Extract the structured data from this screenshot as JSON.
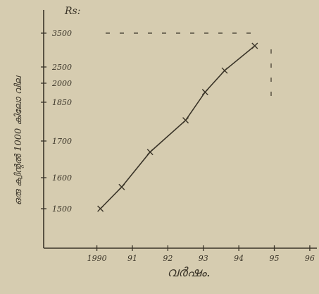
{
  "chart_data": {
    "type": "line",
    "y_unit": "Rs:",
    "y_label": "ഒരു ക്വിന്റൽ 1000 കിലോ വില",
    "x_label": "വർഷം.",
    "x": [
      1990.1,
      1990.7,
      1991.5,
      1992.5,
      1993.05,
      1993.6,
      1994.45
    ],
    "series": [
      {
        "color": "#3a3428",
        "values": [
          1500,
          1570,
          1670,
          1780,
          1930,
          2390,
          3125
        ]
      }
    ],
    "xlim": [
      1988.5,
      1996.2
    ],
    "xticks": [
      {
        "value": 1990,
        "label": "1990"
      },
      {
        "value": 1991,
        "label": "91"
      },
      {
        "value": 1992,
        "label": "92"
      },
      {
        "value": 1993,
        "label": "93"
      },
      {
        "value": 1994,
        "label": "94"
      },
      {
        "value": 1995,
        "label": "95"
      },
      {
        "value": 1996,
        "label": "96"
      }
    ],
    "ylim": [
      1500,
      3500
    ],
    "yticks": [
      1500,
      1600,
      1700,
      1850,
      2000,
      2500,
      3500
    ]
  }
}
